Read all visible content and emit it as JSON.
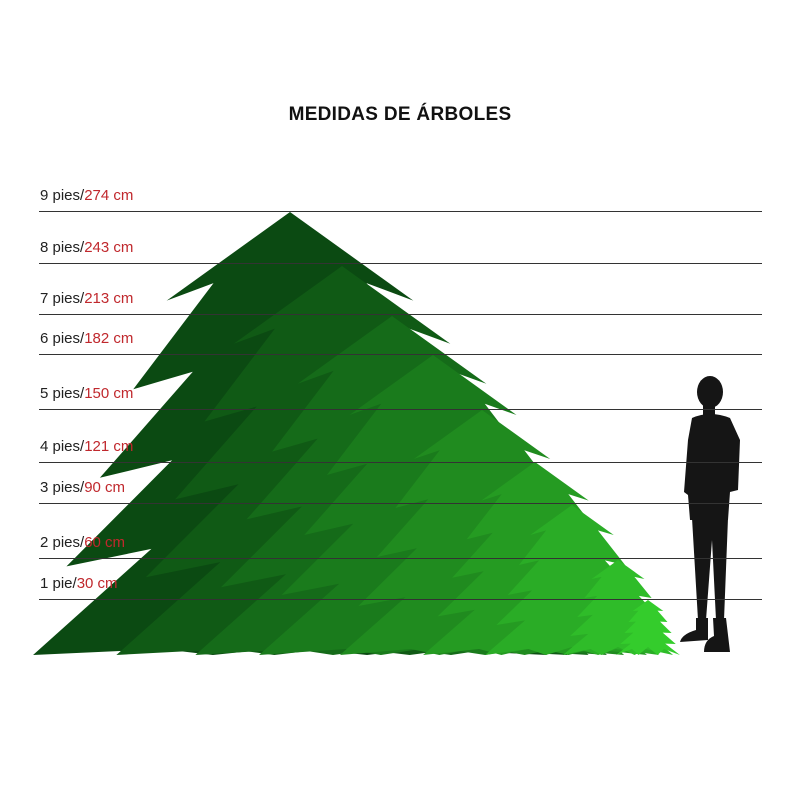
{
  "title": "MEDIDAS DE ÁRBOLES",
  "sizes": [
    {
      "feet": "9 pies/",
      "cm": "274 cm"
    },
    {
      "feet": "8 pies/",
      "cm": "243 cm"
    },
    {
      "feet": "7 pies/",
      "cm": "213 cm"
    },
    {
      "feet": "6 pies/",
      "cm": "182 cm"
    },
    {
      "feet": "5 pies/",
      "cm": "150 cm"
    },
    {
      "feet": "4 pies/",
      "cm": "121 cm"
    },
    {
      "feet": "3 pies/",
      "cm": "90 cm"
    },
    {
      "feet": "2 pies/",
      "cm": "60 cm"
    },
    {
      "feet": "1 pie/",
      "cm": "30 cm"
    }
  ],
  "colors": {
    "label_cm": "#c0282d",
    "tree_dark": "#0b4a12",
    "tree_light": "#34cc2c",
    "person": "#151515"
  }
}
